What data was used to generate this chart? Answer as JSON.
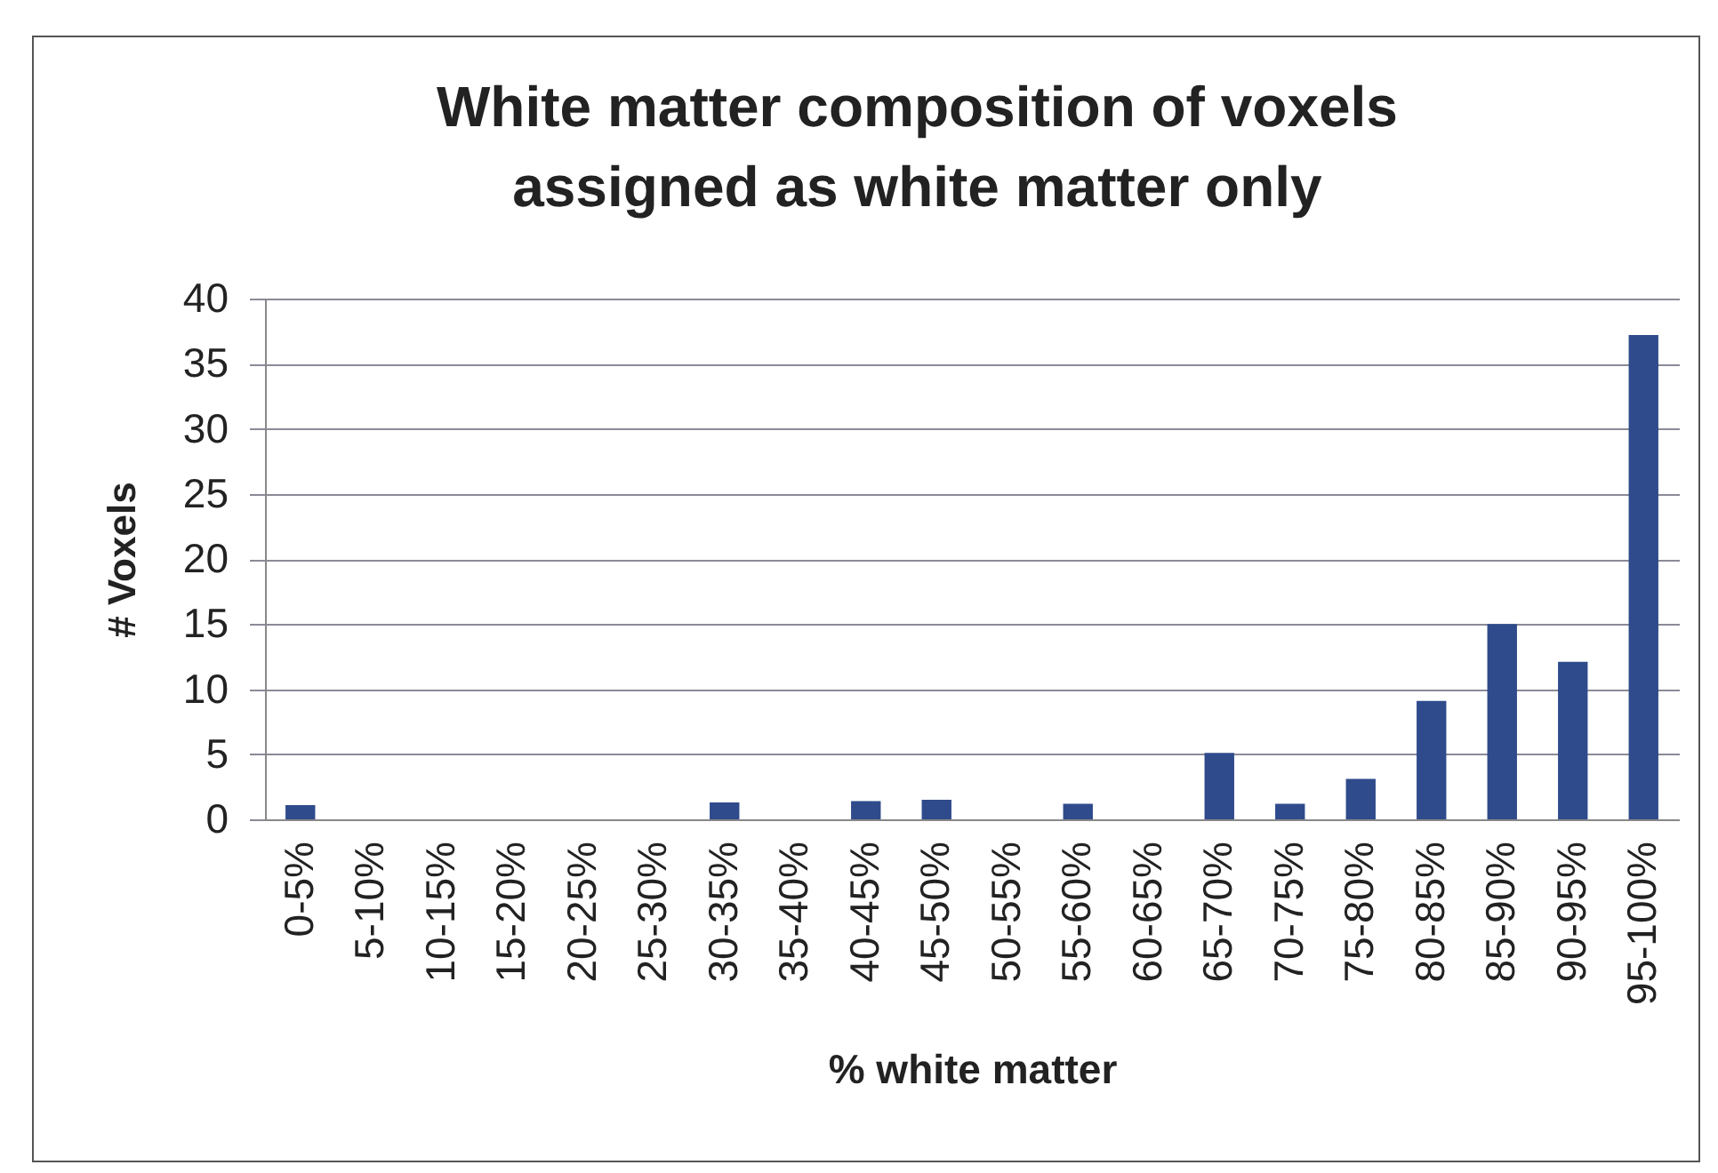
{
  "chart_data": {
    "type": "bar",
    "title": "White matter composition of voxels\nassigned as white matter only",
    "xlabel": "% white matter",
    "ylabel": "# Voxels",
    "categories": [
      "0-5%",
      "5-10%",
      "10-15%",
      "15-20%",
      "20-25%",
      "25-30%",
      "30-35%",
      "35-40%",
      "40-45%",
      "45-50%",
      "50-55%",
      "55-60%",
      "60-65%",
      "65-70%",
      "70-75%",
      "75-80%",
      "80-85%",
      "85-90%",
      "90-95%",
      "95-100%"
    ],
    "values": [
      1.1,
      0,
      0,
      0,
      0,
      0,
      1.3,
      0,
      1.4,
      1.5,
      0,
      1.2,
      0,
      5.1,
      1.2,
      3.1,
      9.1,
      15,
      12.1,
      37.2
    ],
    "color": "#2f4b8c",
    "ylim": [
      0,
      40
    ],
    "yticks": [
      0,
      5,
      10,
      15,
      20,
      25,
      30,
      35,
      40
    ],
    "grid": "y"
  }
}
